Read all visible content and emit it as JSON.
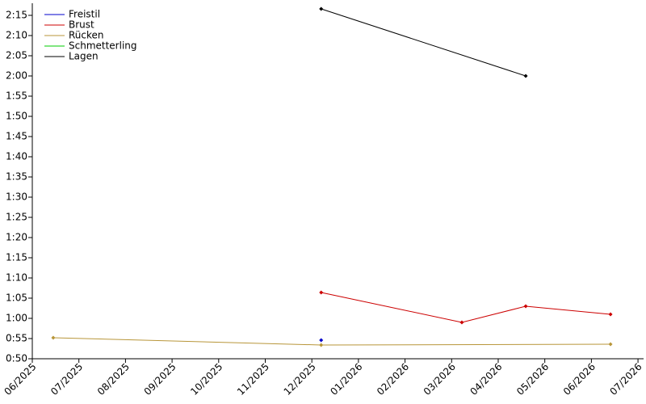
{
  "chart_data": {
    "type": "line",
    "xlim": [
      0,
      13.12
    ],
    "ylim": [
      50,
      138
    ],
    "xticks": [
      {
        "value": 0,
        "label": "06/2025"
      },
      {
        "value": 1,
        "label": "07/2025"
      },
      {
        "value": 2,
        "label": "08/2025"
      },
      {
        "value": 3,
        "label": "09/2025"
      },
      {
        "value": 4,
        "label": "10/2025"
      },
      {
        "value": 5,
        "label": "11/2025"
      },
      {
        "value": 6,
        "label": "12/2025"
      },
      {
        "value": 7,
        "label": "01/2026"
      },
      {
        "value": 8,
        "label": "02/2026"
      },
      {
        "value": 9,
        "label": "03/2026"
      },
      {
        "value": 10,
        "label": "04/2026"
      },
      {
        "value": 11,
        "label": "05/2026"
      },
      {
        "value": 12,
        "label": "06/2026"
      },
      {
        "value": 13,
        "label": "07/2026"
      }
    ],
    "yticks": [
      {
        "value": 50,
        "label": "0:50"
      },
      {
        "value": 55,
        "label": "0:55"
      },
      {
        "value": 60,
        "label": "1:00"
      },
      {
        "value": 65,
        "label": "1:05"
      },
      {
        "value": 70,
        "label": "1:10"
      },
      {
        "value": 75,
        "label": "1:15"
      },
      {
        "value": 80,
        "label": "1:20"
      },
      {
        "value": 85,
        "label": "1:25"
      },
      {
        "value": 90,
        "label": "1:30"
      },
      {
        "value": 95,
        "label": "1:35"
      },
      {
        "value": 100,
        "label": "1:40"
      },
      {
        "value": 105,
        "label": "1:45"
      },
      {
        "value": 110,
        "label": "1:50"
      },
      {
        "value": 115,
        "label": "1:55"
      },
      {
        "value": 120,
        "label": "2:00"
      },
      {
        "value": 125,
        "label": "2:05"
      },
      {
        "value": 130,
        "label": "2:10"
      },
      {
        "value": 135,
        "label": "2:15"
      }
    ],
    "legend": "upper-left",
    "series": [
      {
        "name": "Freistil",
        "color": "#0000cc",
        "x": [
          6.2
        ],
        "values": [
          54.6
        ]
      },
      {
        "name": "Brust",
        "color": "#cc0000",
        "x": [
          6.2,
          9.22,
          10.59,
          12.41
        ],
        "values": [
          66.4,
          59,
          63,
          61
        ]
      },
      {
        "name": "Rücken",
        "color": "#b8963a",
        "x": [
          0.45,
          6.2,
          12.41
        ],
        "values": [
          55.2,
          53.4,
          53.6
        ]
      },
      {
        "name": "Schmetterling",
        "color": "#00cc00",
        "x": [],
        "values": []
      },
      {
        "name": "Lagen",
        "color": "#000000",
        "x": [
          6.2,
          10.59
        ],
        "values": [
          136.6,
          120
        ]
      }
    ]
  }
}
